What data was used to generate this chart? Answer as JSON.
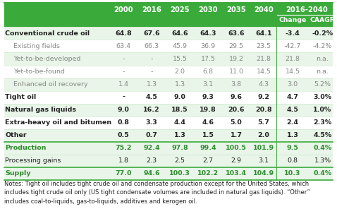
{
  "header_bg": "#3aaa3a",
  "green_text": "#2e8b2e",
  "dark_text": "#222222",
  "gray_text": "#888888",
  "white": "#ffffff",
  "light_green_bg": "#e8f5e8",
  "col2016_2040_label": "2016-2040",
  "year_labels": [
    "2000",
    "2016",
    "2025",
    "2030",
    "2035",
    "2040"
  ],
  "change_label": "Change",
  "caagr_label": "CAAGR",
  "rows": [
    {
      "label": "Conventional crude oil",
      "bold": true,
      "indent": false,
      "green": false,
      "values": [
        "64.8",
        "67.6",
        "64.6",
        "64.3",
        "63.6",
        "64.1",
        "-3.4",
        "-0.2%"
      ]
    },
    {
      "label": "Existing fields",
      "bold": false,
      "indent": true,
      "green": false,
      "values": [
        "63.4",
        "66.3",
        "45.9",
        "36.9",
        "29.5",
        "23.5",
        "-42.7",
        "-4.2%"
      ]
    },
    {
      "label": "Yet-to-be-developed",
      "bold": false,
      "indent": true,
      "green": false,
      "values": [
        "-",
        "-",
        "15.5",
        "17.5",
        "19.2",
        "21.8",
        "21.8",
        "n.a."
      ]
    },
    {
      "label": "Yet-to-be-found",
      "bold": false,
      "indent": true,
      "green": false,
      "values": [
        "-",
        "-",
        "2.0",
        "6.8",
        "11.0",
        "14.5",
        "14.5",
        "n.a."
      ]
    },
    {
      "label": "Enhanced oil recovery",
      "bold": false,
      "indent": true,
      "green": false,
      "values": [
        "1.4",
        "1.3",
        "1.3",
        "3.1",
        "3.8",
        "4.3",
        "3.0",
        "5.2%"
      ]
    },
    {
      "label": "Tight oil",
      "bold": true,
      "indent": false,
      "green": false,
      "values": [
        "-",
        "4.5",
        "9.0",
        "9.3",
        "9.6",
        "9.2",
        "4.7",
        "3.0%"
      ]
    },
    {
      "label": "Natural gas liquids",
      "bold": true,
      "indent": false,
      "green": false,
      "values": [
        "9.0",
        "16.2",
        "18.5",
        "19.8",
        "20.6",
        "20.8",
        "4.5",
        "1.0%"
      ]
    },
    {
      "label": "Extra-heavy oil and bitumen",
      "bold": true,
      "indent": false,
      "green": false,
      "values": [
        "0.8",
        "3.3",
        "4.4",
        "4.6",
        "5.0",
        "5.7",
        "2.4",
        "2.3%"
      ]
    },
    {
      "label": "Other",
      "bold": true,
      "indent": false,
      "green": false,
      "values": [
        "0.5",
        "0.7",
        "1.3",
        "1.5",
        "1.7",
        "2.0",
        "1.3",
        "4.5%"
      ]
    },
    {
      "label": "Production",
      "bold": true,
      "indent": false,
      "green": true,
      "values": [
        "75.2",
        "92.4",
        "97.8",
        "99.4",
        "100.5",
        "101.9",
        "9.5",
        "0.4%"
      ]
    },
    {
      "label": "Processing gains",
      "bold": false,
      "indent": false,
      "green": false,
      "values": [
        "1.8",
        "2.3",
        "2.5",
        "2.7",
        "2.9",
        "3.1",
        "0.8",
        "1.3%"
      ]
    },
    {
      "label": "Supply",
      "bold": true,
      "indent": false,
      "green": true,
      "values": [
        "77.0",
        "94.6",
        "100.3",
        "102.2",
        "103.4",
        "104.9",
        "10.3",
        "0.4%"
      ]
    }
  ],
  "notes_line1": "Notes: Tight oil includes tight crude oil and condensate production except for the United States, which",
  "notes_line2": "includes tight crude oil only (US tight condensate volumes are included in natural gas liquids). “Other”",
  "notes_line3": "includes coal-to-liquids, gas-to-liquids, additives and kerogen oil.",
  "notes_fontsize": 6.0,
  "cell_fontsize": 6.8,
  "header_fontsize": 7.2
}
